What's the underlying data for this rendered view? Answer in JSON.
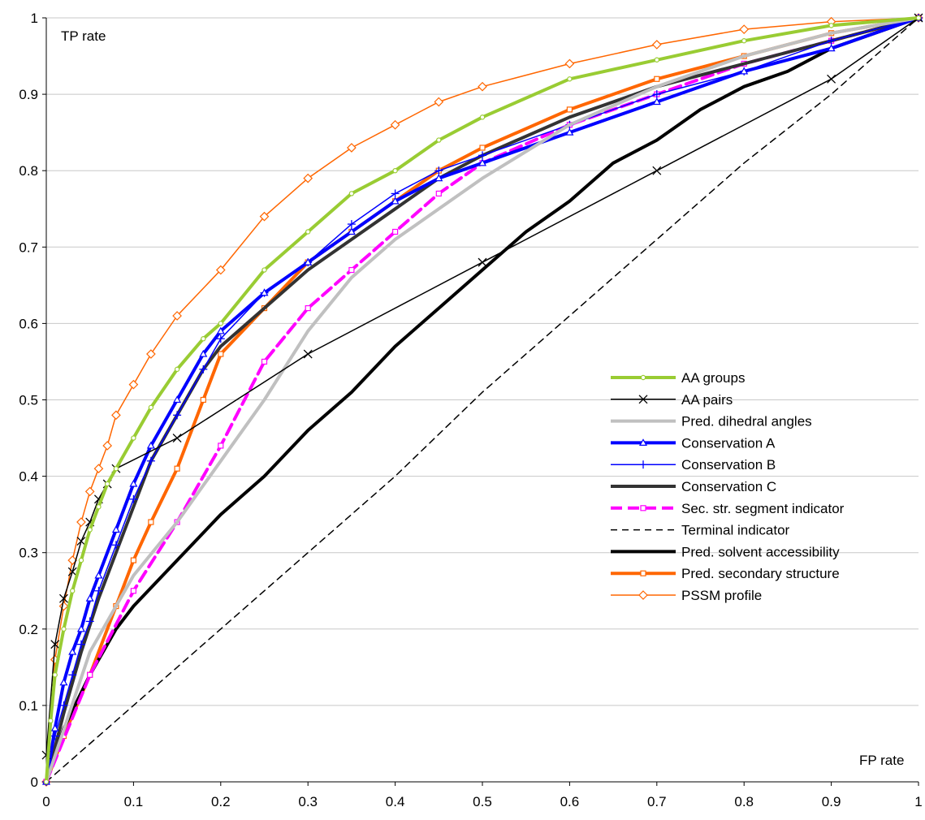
{
  "chart_data": {
    "type": "line",
    "title": "",
    "xlabel": "FP rate",
    "ylabel": "TP rate",
    "xlim": [
      0,
      1
    ],
    "ylim": [
      0,
      1
    ],
    "xticks": [
      "0",
      "0.1",
      "0.2",
      "0.3",
      "0.4",
      "0.5",
      "0.6",
      "0.7",
      "0.8",
      "0.9",
      "1"
    ],
    "yticks": [
      "0",
      "0.1",
      "0.2",
      "0.3",
      "0.4",
      "0.5",
      "0.6",
      "0.7",
      "0.8",
      "0.9",
      "1"
    ],
    "grid": "horizontal",
    "legend_position": "right",
    "series": [
      {
        "name": "AA groups",
        "color": "#99cc33",
        "width": 4,
        "dash": "",
        "marker": "circle",
        "x": [
          0,
          0.005,
          0.01,
          0.02,
          0.03,
          0.04,
          0.05,
          0.06,
          0.07,
          0.08,
          0.1,
          0.12,
          0.15,
          0.18,
          0.2,
          0.25,
          0.3,
          0.35,
          0.4,
          0.45,
          0.5,
          0.6,
          0.7,
          0.8,
          0.9,
          1
        ],
        "y": [
          0,
          0.08,
          0.14,
          0.2,
          0.25,
          0.29,
          0.33,
          0.36,
          0.39,
          0.41,
          0.45,
          0.49,
          0.54,
          0.58,
          0.6,
          0.67,
          0.72,
          0.77,
          0.8,
          0.84,
          0.87,
          0.92,
          0.945,
          0.97,
          0.99,
          1
        ]
      },
      {
        "name": "AA pairs",
        "color": "#000000",
        "width": 1.5,
        "dash": "",
        "marker": "x",
        "x": [
          0,
          0.01,
          0.02,
          0.03,
          0.04,
          0.05,
          0.06,
          0.07,
          0.08,
          0.15,
          0.3,
          0.5,
          0.7,
          0.9,
          1
        ],
        "y": [
          0.035,
          0.18,
          0.24,
          0.275,
          0.315,
          0.34,
          0.37,
          0.39,
          0.41,
          0.45,
          0.56,
          0.68,
          0.8,
          0.92,
          1
        ]
      },
      {
        "name": "Pred. dihedral angles",
        "color": "#c0c0c0",
        "width": 4,
        "dash": "",
        "marker": "none",
        "x": [
          0,
          0.05,
          0.1,
          0.15,
          0.2,
          0.25,
          0.3,
          0.35,
          0.4,
          0.5,
          0.6,
          0.7,
          0.8,
          0.9,
          1
        ],
        "y": [
          0,
          0.17,
          0.27,
          0.34,
          0.42,
          0.5,
          0.59,
          0.66,
          0.71,
          0.79,
          0.86,
          0.91,
          0.95,
          0.98,
          1
        ]
      },
      {
        "name": "Conservation A",
        "color": "#0000ff",
        "width": 4,
        "dash": "",
        "marker": "triangle",
        "x": [
          0,
          0.01,
          0.02,
          0.03,
          0.04,
          0.05,
          0.06,
          0.08,
          0.1,
          0.12,
          0.15,
          0.18,
          0.2,
          0.25,
          0.3,
          0.35,
          0.4,
          0.45,
          0.5,
          0.6,
          0.7,
          0.8,
          0.9,
          1
        ],
        "y": [
          0,
          0.07,
          0.13,
          0.17,
          0.2,
          0.24,
          0.27,
          0.33,
          0.39,
          0.44,
          0.5,
          0.56,
          0.59,
          0.64,
          0.68,
          0.72,
          0.76,
          0.79,
          0.81,
          0.85,
          0.89,
          0.93,
          0.96,
          1
        ]
      },
      {
        "name": "Conservation B",
        "color": "#0000ff",
        "width": 1.5,
        "dash": "",
        "marker": "plus",
        "x": [
          0,
          0.01,
          0.02,
          0.03,
          0.04,
          0.05,
          0.06,
          0.08,
          0.1,
          0.12,
          0.15,
          0.18,
          0.2,
          0.25,
          0.3,
          0.35,
          0.4,
          0.45,
          0.5,
          0.6,
          0.7,
          0.8,
          0.9,
          1
        ],
        "y": [
          0,
          0.06,
          0.1,
          0.14,
          0.18,
          0.21,
          0.25,
          0.31,
          0.37,
          0.42,
          0.48,
          0.54,
          0.58,
          0.64,
          0.68,
          0.73,
          0.77,
          0.8,
          0.82,
          0.86,
          0.9,
          0.93,
          0.97,
          1
        ]
      },
      {
        "name": "Conservation C",
        "color": "#333333",
        "width": 4,
        "dash": "",
        "marker": "none",
        "x": [
          0,
          0.02,
          0.04,
          0.06,
          0.08,
          0.1,
          0.12,
          0.15,
          0.18,
          0.2,
          0.25,
          0.3,
          0.35,
          0.4,
          0.45,
          0.5,
          0.6,
          0.7,
          0.8,
          0.9,
          1
        ],
        "y": [
          0,
          0.09,
          0.17,
          0.24,
          0.3,
          0.36,
          0.42,
          0.48,
          0.54,
          0.57,
          0.62,
          0.67,
          0.71,
          0.75,
          0.79,
          0.82,
          0.87,
          0.91,
          0.94,
          0.97,
          1
        ]
      },
      {
        "name": "Sec. str. segment indicator",
        "color": "#ff00ff",
        "width": 4,
        "dash": "14,7",
        "marker": "square",
        "x": [
          0,
          0.05,
          0.1,
          0.15,
          0.2,
          0.25,
          0.3,
          0.35,
          0.4,
          0.45,
          0.5,
          0.6,
          0.7,
          0.8,
          0.9,
          1
        ],
        "y": [
          0,
          0.14,
          0.25,
          0.34,
          0.44,
          0.55,
          0.62,
          0.67,
          0.72,
          0.77,
          0.81,
          0.86,
          0.9,
          0.94,
          0.97,
          1
        ]
      },
      {
        "name": "Terminal indicator",
        "color": "#000000",
        "width": 1.5,
        "dash": "8,6",
        "marker": "none",
        "x": [
          0,
          0.05,
          0.1,
          0.15,
          0.2,
          0.3,
          0.4,
          0.5,
          0.6,
          0.7,
          0.8,
          0.9,
          1
        ],
        "y": [
          0,
          0.05,
          0.1,
          0.15,
          0.2,
          0.3,
          0.4,
          0.51,
          0.61,
          0.71,
          0.81,
          0.9,
          1
        ]
      },
      {
        "name": "Pred. solvent accessibility",
        "color": "#000000",
        "width": 4,
        "dash": "",
        "marker": "none",
        "x": [
          0,
          0.02,
          0.05,
          0.08,
          0.1,
          0.15,
          0.2,
          0.25,
          0.3,
          0.35,
          0.4,
          0.45,
          0.5,
          0.55,
          0.6,
          0.65,
          0.7,
          0.75,
          0.8,
          0.85,
          0.9,
          0.95,
          1
        ],
        "y": [
          0,
          0.07,
          0.14,
          0.2,
          0.23,
          0.29,
          0.35,
          0.4,
          0.46,
          0.51,
          0.57,
          0.62,
          0.67,
          0.72,
          0.76,
          0.81,
          0.84,
          0.88,
          0.91,
          0.93,
          0.96,
          0.98,
          1
        ]
      },
      {
        "name": "Pred. secondary structure",
        "color": "#ff6600",
        "width": 4,
        "dash": "",
        "marker": "square",
        "x": [
          0,
          0.02,
          0.05,
          0.08,
          0.1,
          0.12,
          0.15,
          0.18,
          0.2,
          0.25,
          0.3,
          0.35,
          0.4,
          0.45,
          0.5,
          0.6,
          0.7,
          0.8,
          0.9,
          1
        ],
        "y": [
          0,
          0.06,
          0.14,
          0.23,
          0.29,
          0.34,
          0.41,
          0.5,
          0.56,
          0.62,
          0.68,
          0.72,
          0.76,
          0.8,
          0.83,
          0.88,
          0.92,
          0.95,
          0.98,
          1
        ]
      },
      {
        "name": "PSSM profile",
        "color": "#ff6600",
        "width": 1.5,
        "dash": "",
        "marker": "diamond",
        "x": [
          0,
          0.01,
          0.02,
          0.03,
          0.04,
          0.05,
          0.06,
          0.07,
          0.08,
          0.1,
          0.12,
          0.15,
          0.2,
          0.25,
          0.3,
          0.35,
          0.4,
          0.45,
          0.5,
          0.6,
          0.7,
          0.8,
          0.9,
          1
        ],
        "y": [
          0,
          0.16,
          0.23,
          0.29,
          0.34,
          0.38,
          0.41,
          0.44,
          0.48,
          0.52,
          0.56,
          0.61,
          0.67,
          0.74,
          0.79,
          0.83,
          0.86,
          0.89,
          0.91,
          0.94,
          0.965,
          0.985,
          0.995,
          1
        ]
      }
    ]
  }
}
